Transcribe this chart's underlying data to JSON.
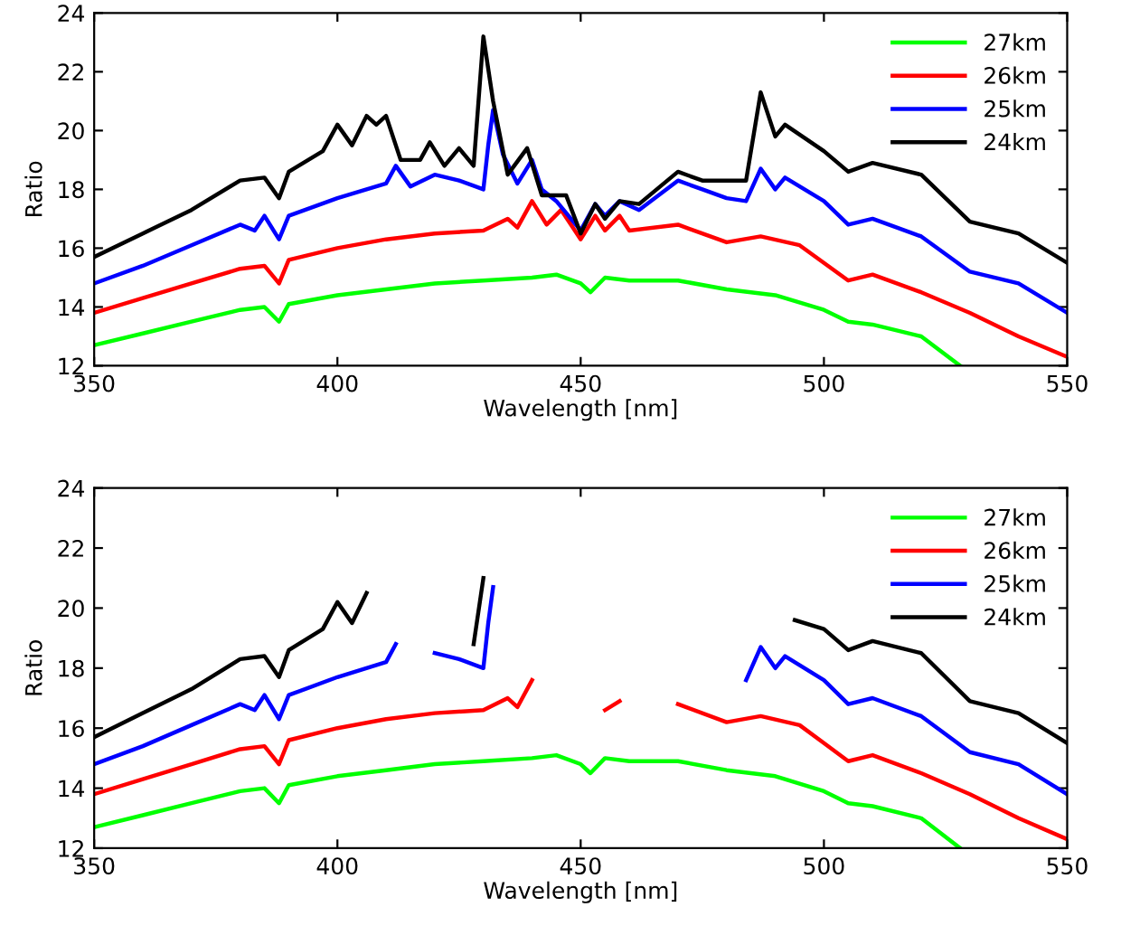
{
  "chart_data": [
    {
      "type": "line",
      "xlabel": "Wavelength [nm]",
      "ylabel": "Ratio",
      "xlim": [
        350,
        550
      ],
      "xticks": [
        350,
        400,
        450,
        500,
        550
      ],
      "ylim": [
        12,
        24
      ],
      "yticks": [
        12,
        14,
        16,
        18,
        20,
        22,
        24
      ],
      "legend": "top right",
      "grid": false,
      "series": [
        {
          "name": "27km",
          "color": "#00ff00",
          "x": [
            350,
            360,
            370,
            380,
            385,
            388,
            390,
            400,
            410,
            420,
            430,
            440,
            445,
            450,
            452,
            455,
            460,
            470,
            480,
            490,
            500,
            505,
            510,
            520,
            528
          ],
          "values": [
            12.7,
            13.1,
            13.5,
            13.9,
            14.0,
            13.5,
            14.1,
            14.4,
            14.6,
            14.8,
            14.9,
            15.0,
            15.1,
            14.8,
            14.5,
            15.0,
            14.9,
            14.9,
            14.6,
            14.4,
            13.9,
            13.5,
            13.4,
            13.0,
            12.0
          ]
        },
        {
          "name": "26km",
          "color": "#ff0000",
          "x": [
            350,
            360,
            370,
            380,
            385,
            388,
            390,
            400,
            410,
            420,
            430,
            435,
            437,
            440,
            443,
            446,
            450,
            453,
            455,
            458,
            460,
            470,
            480,
            487,
            495,
            500,
            505,
            510,
            520,
            530,
            540,
            550
          ],
          "values": [
            13.8,
            14.3,
            14.8,
            15.3,
            15.4,
            14.8,
            15.6,
            16.0,
            16.3,
            16.5,
            16.6,
            17.0,
            16.7,
            17.6,
            16.8,
            17.3,
            16.3,
            17.1,
            16.6,
            17.1,
            16.6,
            16.8,
            16.2,
            16.4,
            16.1,
            15.5,
            14.9,
            15.1,
            14.5,
            13.8,
            13.0,
            12.3
          ]
        },
        {
          "name": "25km",
          "color": "#0000ff",
          "x": [
            350,
            360,
            370,
            380,
            383,
            385,
            388,
            390,
            400,
            410,
            412,
            415,
            420,
            425,
            430,
            431,
            432,
            434,
            437,
            440,
            442,
            445,
            450,
            453,
            455,
            458,
            462,
            470,
            475,
            480,
            484,
            487,
            490,
            492,
            500,
            505,
            510,
            520,
            530,
            540,
            550
          ],
          "values": [
            14.8,
            15.4,
            16.1,
            16.8,
            16.6,
            17.1,
            16.3,
            17.1,
            17.7,
            18.2,
            18.8,
            18.1,
            18.5,
            18.3,
            18.0,
            19.5,
            20.7,
            19.2,
            18.2,
            19.0,
            18.0,
            17.6,
            16.6,
            17.5,
            17.1,
            17.6,
            17.3,
            18.3,
            18.0,
            17.7,
            17.6,
            18.7,
            18.0,
            18.4,
            17.6,
            16.8,
            17.0,
            16.4,
            15.2,
            14.8,
            13.8
          ]
        },
        {
          "name": "24km",
          "color": "#000000",
          "x": [
            350,
            360,
            370,
            380,
            385,
            388,
            390,
            397,
            400,
            403,
            406,
            408,
            410,
            413,
            417,
            419,
            422,
            425,
            428,
            430,
            432,
            435,
            439,
            442,
            447,
            450,
            453,
            455,
            458,
            462,
            470,
            475,
            484,
            487,
            490,
            492,
            500,
            505,
            510,
            520,
            530,
            540,
            550
          ],
          "values": [
            15.7,
            16.5,
            17.3,
            18.3,
            18.4,
            17.7,
            18.6,
            19.3,
            20.2,
            19.5,
            20.5,
            20.2,
            20.5,
            19.0,
            19.0,
            19.6,
            18.8,
            19.4,
            18.8,
            23.2,
            21.0,
            18.5,
            19.4,
            17.8,
            17.8,
            16.5,
            17.5,
            17.0,
            17.6,
            17.5,
            18.6,
            18.3,
            18.3,
            21.3,
            19.8,
            20.2,
            19.3,
            18.6,
            18.9,
            18.5,
            16.9,
            16.5,
            15.5
          ]
        }
      ]
    },
    {
      "type": "line",
      "xlabel": "Wavelength [nm]",
      "ylabel": "Ratio",
      "xlim": [
        350,
        550
      ],
      "xticks": [
        350,
        400,
        450,
        500,
        550
      ],
      "ylim": [
        12,
        24
      ],
      "yticks": [
        12,
        14,
        16,
        18,
        20,
        22,
        24
      ],
      "legend": "top right",
      "grid": false,
      "series": [
        {
          "name": "27km",
          "color": "#00ff00",
          "x": [
            350,
            360,
            370,
            380,
            385,
            388,
            390,
            400,
            410,
            420,
            430,
            440,
            445,
            450,
            452,
            455,
            460,
            470,
            480,
            490,
            500,
            505,
            510,
            520,
            528
          ],
          "values": [
            12.7,
            13.1,
            13.5,
            13.9,
            14.0,
            13.5,
            14.1,
            14.4,
            14.6,
            14.8,
            14.9,
            15.0,
            15.1,
            14.8,
            14.5,
            15.0,
            14.9,
            14.9,
            14.6,
            14.4,
            13.9,
            13.5,
            13.4,
            13.0,
            12.0
          ]
        },
        {
          "name": "26km",
          "color": "#ff0000",
          "x": [
            350,
            360,
            370,
            380,
            385,
            388,
            390,
            400,
            410,
            420,
            430,
            435,
            437,
            440,
            443,
            446,
            450,
            453,
            455,
            458,
            460,
            470,
            480,
            487,
            495,
            500,
            505,
            510,
            520,
            530,
            540,
            550
          ],
          "values": [
            13.8,
            14.3,
            14.8,
            15.3,
            15.4,
            14.8,
            15.6,
            16.0,
            16.3,
            16.5,
            16.6,
            17.0,
            16.7,
            17.6,
            null,
            null,
            null,
            null,
            16.6,
            16.9,
            null,
            16.8,
            16.2,
            16.4,
            16.1,
            15.5,
            14.9,
            15.1,
            14.5,
            13.8,
            13.0,
            12.3
          ]
        },
        {
          "name": "25km",
          "color": "#0000ff",
          "x": [
            350,
            360,
            370,
            380,
            383,
            385,
            388,
            390,
            400,
            410,
            412,
            415,
            420,
            425,
            430,
            431,
            432,
            434,
            484,
            487,
            490,
            492,
            500,
            505,
            510,
            520,
            530,
            540,
            550
          ],
          "values": [
            14.8,
            15.4,
            16.1,
            16.8,
            16.6,
            17.1,
            16.3,
            17.1,
            17.7,
            18.2,
            18.8,
            null,
            18.5,
            18.3,
            18.0,
            19.5,
            20.7,
            null,
            17.6,
            18.7,
            18.0,
            18.4,
            17.6,
            16.8,
            17.0,
            16.4,
            15.2,
            14.8,
            13.8
          ]
        },
        {
          "name": "24km",
          "color": "#000000",
          "x": [
            350,
            360,
            370,
            380,
            385,
            388,
            390,
            397,
            400,
            403,
            406,
            408,
            428,
            430,
            432,
            494,
            500,
            505,
            510,
            520,
            530,
            540,
            550
          ],
          "values": [
            15.7,
            16.5,
            17.3,
            18.3,
            18.4,
            17.7,
            18.6,
            19.3,
            20.2,
            19.5,
            20.5,
            null,
            18.8,
            21.0,
            null,
            19.6,
            19.3,
            18.6,
            18.9,
            18.5,
            16.9,
            16.5,
            15.5
          ]
        }
      ]
    }
  ]
}
